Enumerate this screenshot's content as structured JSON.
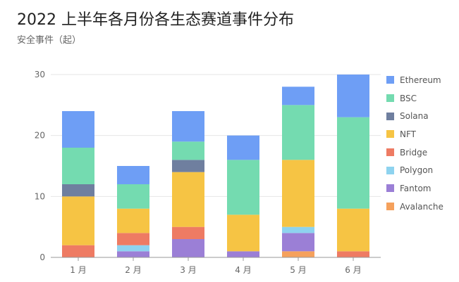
{
  "title": "2022 上半年各月份各生态赛道事件分布",
  "subtitle": "安全事件（起）",
  "chart_data": {
    "type": "bar",
    "stacked": true,
    "title": "2022 上半年各月份各生态赛道事件分布",
    "subtitle": "安全事件（起）",
    "categories": [
      "1 月",
      "2 月",
      "3 月",
      "4 月",
      "5 月",
      "6 月"
    ],
    "ylim": [
      0,
      30
    ],
    "yticks": [
      0,
      10,
      20,
      30
    ],
    "grid": true,
    "legend_position": "right",
    "series": [
      {
        "name": "Avalanche",
        "color": "#f5a15c",
        "values": [
          0,
          0,
          0,
          0,
          1,
          0
        ]
      },
      {
        "name": "Fantom",
        "color": "#9b7fd6",
        "values": [
          0,
          1,
          3,
          1,
          3,
          0
        ]
      },
      {
        "name": "Polygon",
        "color": "#8ed3ef",
        "values": [
          0,
          1,
          0,
          0,
          1,
          0
        ]
      },
      {
        "name": "Bridge",
        "color": "#ee7b63",
        "values": [
          2,
          2,
          2,
          0,
          0,
          1
        ]
      },
      {
        "name": "NFT",
        "color": "#f6c444",
        "values": [
          8,
          4,
          9,
          6,
          11,
          7
        ]
      },
      {
        "name": "Solana",
        "color": "#6f7f9f",
        "values": [
          2,
          0,
          2,
          0,
          0,
          0
        ]
      },
      {
        "name": "BSC",
        "color": "#74dbb0",
        "values": [
          6,
          4,
          3,
          9,
          9,
          15
        ]
      },
      {
        "name": "Ethereum",
        "color": "#6e9ef5",
        "values": [
          6,
          3,
          5,
          4,
          3,
          7
        ]
      }
    ],
    "legend": [
      "Ethereum",
      "BSC",
      "Solana",
      "NFT",
      "Bridge",
      "Polygon",
      "Fantom",
      "Avalanche"
    ]
  }
}
